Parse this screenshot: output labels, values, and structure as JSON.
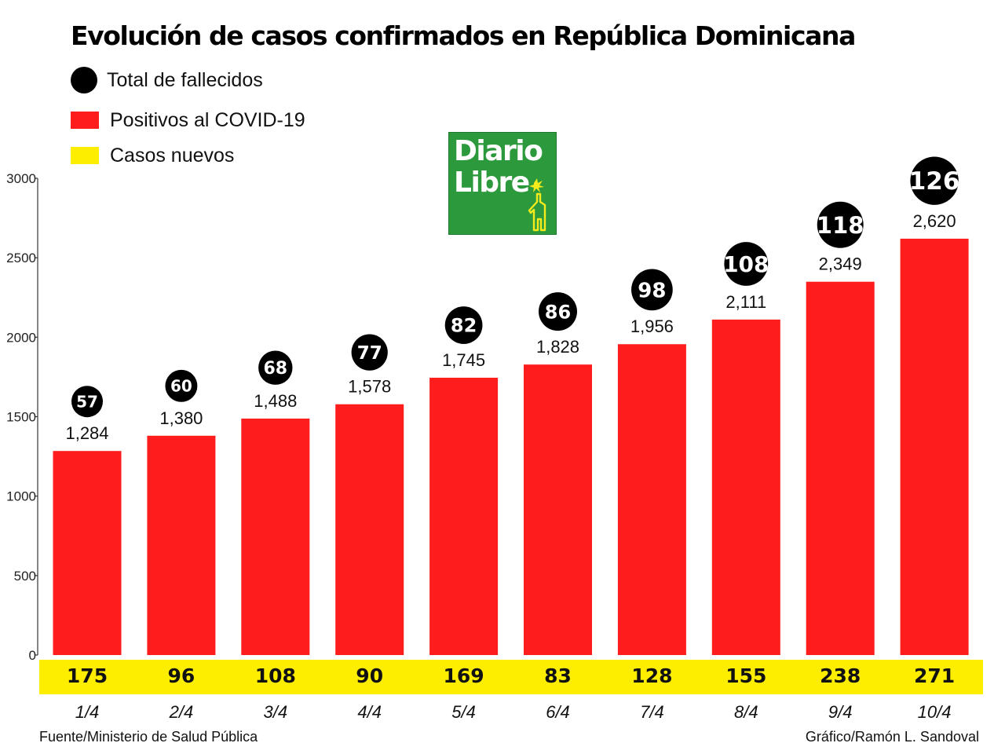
{
  "title": "Evolución de casos confirmados en República Dominicana",
  "legend": [
    {
      "label": "Total de fallecidos",
      "shape": "circle",
      "color": "#000000"
    },
    {
      "label": "Positivos al COVID-19",
      "shape": "rect",
      "color": "#fe1c1c"
    },
    {
      "label": "Casos nuevos",
      "shape": "rect",
      "color": "#fdee00"
    }
  ],
  "logo": {
    "line1": "Diario",
    "line2": "Libre",
    "icon": "statue-icon",
    "color": "#2c9a3c"
  },
  "chart_data": {
    "type": "bar",
    "categories": [
      "1/4",
      "2/4",
      "3/4",
      "4/4",
      "5/4",
      "6/4",
      "7/4",
      "8/4",
      "9/4",
      "10/4"
    ],
    "series": [
      {
        "name": "Positivos al COVID-19",
        "color": "#fe1c1c",
        "values": [
          1284,
          1380,
          1488,
          1578,
          1745,
          1828,
          1956,
          2111,
          2349,
          2620
        ],
        "labels": [
          "1,284",
          "1,380",
          "1,488",
          "1,578",
          "1,745",
          "1,828",
          "1,956",
          "2,111",
          "2,349",
          "2,620"
        ]
      },
      {
        "name": "Total de fallecidos",
        "color": "#000000",
        "values": [
          57,
          60,
          68,
          77,
          82,
          86,
          98,
          108,
          118,
          126
        ]
      },
      {
        "name": "Casos nuevos",
        "color": "#fdee00",
        "values": [
          175,
          96,
          108,
          90,
          169,
          83,
          128,
          155,
          238,
          271
        ]
      }
    ],
    "y_ticks": [
      "0",
      "500",
      "1000",
      "1500",
      "2000",
      "2500",
      "3000"
    ],
    "ylim": [
      0,
      3000
    ],
    "grid": false
  },
  "footer": {
    "source": "Fuente/Ministerio de Salud Pública",
    "credit": "Gráfico/Ramón L. Sandoval"
  }
}
